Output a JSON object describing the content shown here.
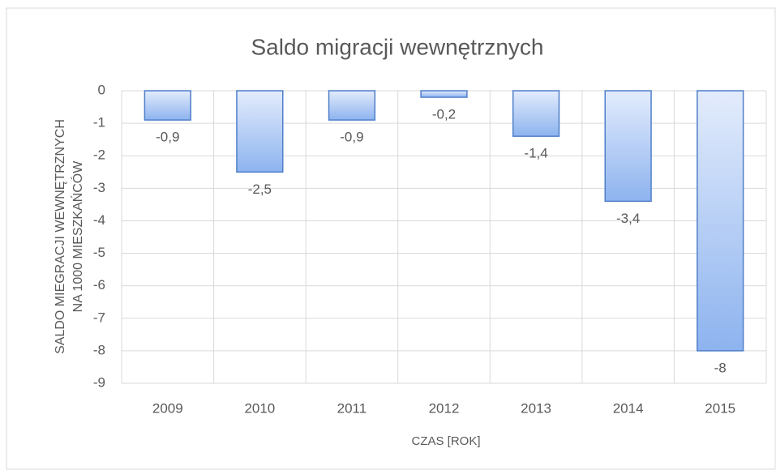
{
  "chart_data": {
    "type": "bar",
    "title": "Saldo migracji wewnętrznych",
    "categories": [
      "2009",
      "2010",
      "2011",
      "2012",
      "2013",
      "2014",
      "2015"
    ],
    "values": [
      -0.9,
      -2.5,
      -0.9,
      -0.2,
      -1.4,
      -3.4,
      -8
    ],
    "value_labels": [
      "-0,9",
      "-2,5",
      "-0,9",
      "-0,2",
      "-1,4",
      "-3,4",
      "-8"
    ],
    "color": "#8db3ef",
    "ylim": [
      -9,
      0
    ],
    "yticks": [
      0,
      -1,
      -2,
      -3,
      -4,
      -5,
      -6,
      -7,
      -8,
      -9
    ],
    "grid": true,
    "x_label": "CZAS [ROK]",
    "y_label": [
      "SALDO MIEGRACJI WEWNĘTRZNYCH",
      "NA 1000 MIESZKAŃCÓW"
    ]
  }
}
